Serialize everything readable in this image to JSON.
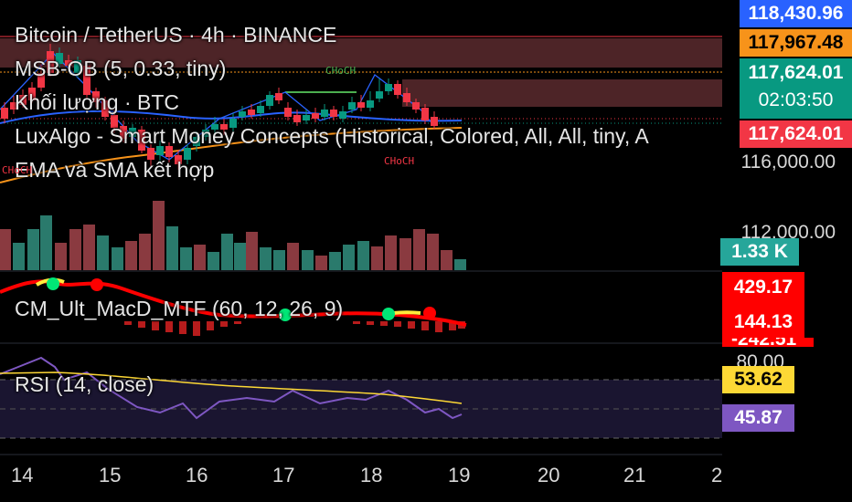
{
  "header": {
    "symbol_line": "Bitcoin / TetherUS · 4h · BINANCE",
    "indicator_1": "MSB-OB (5, 0.33, tiny)",
    "indicator_2": "Khối lượng · BTC",
    "indicator_3": "LuxAlgo - Smart Money Concepts (Historical, Colored, All, All, tiny, A",
    "indicator_4": "EMA và SMA kết hợp"
  },
  "price_axis": {
    "tags": [
      {
        "id": "tag-1",
        "text": "118,430.96",
        "bg": "#2962ff",
        "fg": "#ffffff"
      },
      {
        "id": "tag-2",
        "text": "117,967.48",
        "bg": "#f7931a",
        "fg": "#000000"
      },
      {
        "id": "tag-3",
        "text": "117,624.01",
        "sub": "02:03:50",
        "bg": "#089981",
        "fg": "#ffffff"
      },
      {
        "id": "tag-4",
        "text": "117,624.01",
        "bg": "#f23645",
        "fg": "#ffffff"
      }
    ],
    "labels": [
      "116,000.00",
      "112,000.00"
    ],
    "volume_tag": "1.33 K"
  },
  "macd": {
    "title": "CM_Ult_MacD_MTF (60, 12, 26, 9)",
    "value_1": "429.17",
    "value_2": "144.13",
    "value_3": "-242.51"
  },
  "rsi": {
    "title": "RSI (14, close)",
    "level_top": "80.00",
    "value_rsi": "53.62",
    "value_ma": "45.87"
  },
  "annotations": {
    "choch_green": "CHoCH",
    "choch_red": "CHoCH",
    "choch_left": "CHoCH"
  },
  "time_axis": [
    "14",
    "15",
    "16",
    "17",
    "18",
    "19",
    "20",
    "21",
    "2"
  ],
  "colors": {
    "up": "#089981",
    "down": "#f23645",
    "volume_up": "#2a7a6c",
    "volume_down": "#8a3a40",
    "ema_blue": "#2962ff",
    "ema_orange": "#f7931a",
    "rsi_line": "#7e57c2",
    "rsi_ma": "#fdd835",
    "macd_red": "#ff0000",
    "macd_green": "#00e676",
    "macd_yellow": "#ffeb3b"
  }
}
